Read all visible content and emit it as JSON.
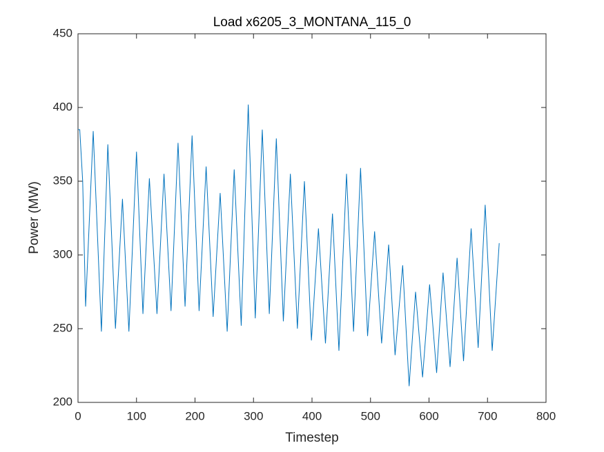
{
  "chart_data": {
    "type": "line",
    "title": "Load x6205_3_MONTANA_115_0",
    "x_label": "Timestep",
    "y_label": "Power (MW)",
    "x": [
      0,
      3,
      8,
      13,
      26,
      40,
      51,
      64,
      76,
      87,
      100,
      111,
      122,
      135,
      147,
      159,
      171,
      183,
      195,
      207,
      219,
      231,
      243,
      255,
      267,
      279,
      291,
      303,
      315,
      327,
      339,
      351,
      363,
      375,
      387,
      399,
      411,
      423,
      435,
      446,
      459,
      471,
      483,
      495,
      507,
      519,
      531,
      542,
      555,
      566,
      577,
      589,
      601,
      613,
      624,
      636,
      648,
      659,
      672,
      684,
      696,
      708,
      720
    ],
    "series": [
      {
        "name": "Load",
        "color": "#0072bd",
        "values": [
          385,
          385,
          350,
          265,
          384,
          248,
          375,
          250,
          338,
          248,
          370,
          260,
          352,
          260,
          355,
          262,
          376,
          265,
          381,
          262,
          360,
          258,
          342,
          248,
          358,
          252,
          402,
          257,
          385,
          260,
          379,
          255,
          355,
          250,
          350,
          242,
          318,
          240,
          328,
          235,
          355,
          248,
          359,
          245,
          316,
          240,
          307,
          232,
          293,
          211,
          275,
          217,
          280,
          220,
          288,
          224,
          298,
          228,
          318,
          237,
          334,
          235,
          308
        ]
      }
    ],
    "xlim": [
      0,
      800
    ],
    "ylim": [
      200,
      450
    ],
    "xticks": [
      0,
      100,
      200,
      300,
      400,
      500,
      600,
      700,
      800
    ],
    "yticks": [
      200,
      250,
      300,
      350,
      400,
      450
    ]
  }
}
